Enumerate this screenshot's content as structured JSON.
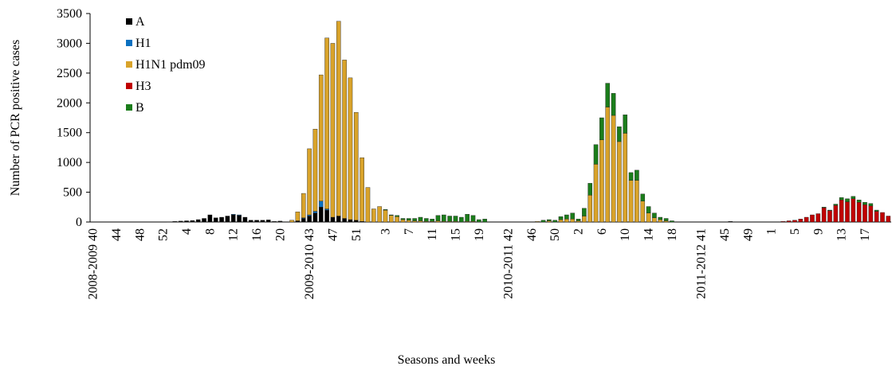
{
  "chart_data": {
    "type": "stacked_bar",
    "x_label": "Seasons and weeks",
    "y_label": "Number of PCR positive cases",
    "ylim": [
      0,
      3500
    ],
    "yticks": [
      0,
      500,
      1000,
      1500,
      2000,
      2500,
      3000,
      3500
    ],
    "legend": "top-left",
    "categories": [
      "2008-2009 40",
      null,
      null,
      null,
      "44",
      null,
      null,
      null,
      "48",
      null,
      null,
      null,
      "52",
      null,
      null,
      null,
      "4",
      null,
      null,
      null,
      "8",
      null,
      null,
      null,
      "12",
      null,
      null,
      null,
      "16",
      null,
      null,
      null,
      "20",
      null,
      null,
      null,
      null,
      "2009-2010 43",
      null,
      null,
      null,
      "47",
      null,
      null,
      null,
      "51",
      null,
      null,
      null,
      null,
      "3",
      null,
      null,
      null,
      "7",
      null,
      null,
      null,
      "11",
      null,
      null,
      null,
      "15",
      null,
      null,
      null,
      "19",
      null,
      null,
      null,
      null,
      "2010-2011 42",
      null,
      null,
      null,
      "46",
      null,
      null,
      null,
      "50",
      null,
      null,
      null,
      "2",
      null,
      null,
      null,
      "6",
      null,
      null,
      null,
      "10",
      null,
      null,
      null,
      "14",
      null,
      null,
      null,
      "18",
      null,
      null,
      null,
      null,
      "2011-2012 41",
      null,
      null,
      null,
      "45",
      null,
      null,
      null,
      "49",
      null,
      null,
      null,
      "1",
      null,
      null,
      null,
      "5",
      null,
      null,
      null,
      "9",
      null,
      null,
      null,
      "13",
      null,
      null,
      null,
      "17",
      null,
      null,
      null,
      null
    ],
    "series": [
      {
        "name": "A",
        "color": "#000000",
        "values": [
          0,
          0,
          0,
          0,
          0,
          0,
          0,
          0,
          0,
          0,
          0,
          0,
          0,
          5,
          10,
          15,
          20,
          25,
          40,
          60,
          120,
          70,
          80,
          100,
          120,
          110,
          80,
          30,
          30,
          30,
          35,
          10,
          15,
          0,
          0,
          20,
          60,
          100,
          150,
          250,
          200,
          80,
          100,
          60,
          40,
          30,
          10,
          0,
          0,
          0,
          0,
          0,
          0,
          0,
          0,
          0,
          0,
          0,
          0,
          0,
          0,
          0,
          0,
          0,
          0,
          0,
          0,
          0,
          0,
          0,
          0,
          0,
          0,
          0,
          0,
          0,
          0,
          0,
          0,
          0,
          0,
          0,
          0,
          0,
          0,
          0,
          0,
          0,
          0,
          0,
          0,
          0,
          0,
          0,
          0,
          0,
          0,
          0,
          0,
          0,
          0,
          0,
          0,
          0,
          0,
          0,
          0,
          0,
          0,
          10,
          0,
          0,
          0,
          0,
          0,
          0,
          0,
          0,
          0,
          0,
          0,
          0,
          0,
          0,
          0,
          0,
          0,
          0,
          0,
          0,
          0,
          0,
          0,
          0,
          0,
          0,
          0
        ]
      },
      {
        "name": "H1",
        "color": "#0a70c0",
        "values": [
          0,
          0,
          0,
          0,
          0,
          0,
          0,
          0,
          0,
          0,
          0,
          0,
          0,
          0,
          0,
          0,
          0,
          0,
          0,
          0,
          0,
          0,
          0,
          0,
          10,
          10,
          0,
          0,
          0,
          0,
          0,
          0,
          0,
          0,
          0,
          0,
          10,
          20,
          30,
          100,
          20,
          0,
          0,
          0,
          0,
          0,
          0,
          0,
          0,
          0,
          0,
          0,
          0,
          0,
          0,
          0,
          0,
          0,
          0,
          0,
          0,
          0,
          0,
          0,
          0,
          0,
          0,
          0,
          0,
          0,
          0,
          0,
          0,
          0,
          0,
          0,
          0,
          0,
          0,
          0,
          0,
          0,
          0,
          0,
          0,
          0,
          0,
          0,
          0,
          0,
          0,
          0,
          0,
          0,
          0,
          0,
          0,
          0,
          0,
          0,
          0,
          0,
          0,
          0,
          0,
          0,
          0,
          0,
          0,
          0,
          0,
          0,
          0,
          0,
          0,
          0,
          0,
          0,
          0,
          0,
          0,
          0,
          0,
          0,
          0,
          0,
          0,
          0,
          0,
          0,
          0,
          0,
          0,
          0,
          0,
          0,
          0
        ]
      },
      {
        "name": "H1N1 pdm09",
        "color": "#d9a32a",
        "values": [
          0,
          0,
          0,
          0,
          0,
          0,
          0,
          0,
          0,
          0,
          0,
          0,
          0,
          0,
          0,
          0,
          0,
          0,
          0,
          0,
          0,
          0,
          0,
          0,
          0,
          0,
          0,
          0,
          0,
          0,
          0,
          0,
          0,
          0,
          30,
          150,
          410,
          1110,
          1380,
          2120,
          2870,
          2920,
          3270,
          2660,
          2380,
          1810,
          1070,
          580,
          220,
          260,
          200,
          110,
          90,
          40,
          30,
          20,
          20,
          10,
          10,
          20,
          10,
          10,
          10,
          0,
          10,
          10,
          0,
          0,
          0,
          0,
          0,
          0,
          0,
          0,
          0,
          0,
          10,
          0,
          20,
          0,
          40,
          50,
          50,
          20,
          100,
          450,
          970,
          1380,
          1930,
          1790,
          1350,
          1490,
          700,
          700,
          350,
          150,
          70,
          40,
          20,
          0,
          0,
          0,
          0,
          0,
          0,
          0,
          0,
          0,
          0,
          0,
          0,
          0,
          0,
          0,
          0,
          0,
          0,
          0,
          0,
          0,
          0,
          0,
          0,
          0,
          0,
          0,
          0,
          0,
          0,
          0,
          0,
          0,
          0,
          0,
          0,
          0,
          0
        ]
      },
      {
        "name": "H3",
        "color": "#c00000",
        "values": [
          0,
          0,
          0,
          0,
          0,
          0,
          0,
          0,
          0,
          0,
          0,
          0,
          0,
          0,
          0,
          0,
          0,
          0,
          0,
          0,
          0,
          0,
          0,
          0,
          0,
          0,
          0,
          0,
          0,
          0,
          0,
          0,
          0,
          0,
          0,
          0,
          0,
          0,
          0,
          0,
          0,
          0,
          0,
          0,
          0,
          0,
          0,
          0,
          0,
          0,
          0,
          0,
          0,
          0,
          0,
          0,
          0,
          0,
          0,
          0,
          0,
          0,
          0,
          0,
          0,
          0,
          0,
          0,
          0,
          0,
          0,
          0,
          0,
          0,
          0,
          0,
          0,
          0,
          0,
          0,
          0,
          0,
          0,
          0,
          0,
          0,
          0,
          0,
          0,
          0,
          0,
          0,
          0,
          0,
          0,
          0,
          0,
          0,
          0,
          0,
          0,
          0,
          0,
          0,
          0,
          0,
          0,
          0,
          0,
          0,
          0,
          0,
          0,
          0,
          0,
          0,
          0,
          0,
          10,
          20,
          30,
          50,
          80,
          120,
          140,
          240,
          190,
          280,
          370,
          340,
          390,
          330,
          290,
          270,
          180,
          160,
          100
        ]
      },
      {
        "name": "B",
        "color": "#1b7d1b",
        "values": [
          0,
          0,
          0,
          0,
          0,
          0,
          0,
          0,
          0,
          0,
          0,
          0,
          0,
          0,
          0,
          0,
          0,
          0,
          0,
          0,
          0,
          0,
          0,
          0,
          0,
          0,
          0,
          0,
          0,
          0,
          0,
          0,
          0,
          0,
          0,
          0,
          0,
          0,
          0,
          0,
          0,
          0,
          0,
          0,
          0,
          0,
          0,
          0,
          0,
          0,
          10,
          10,
          20,
          20,
          30,
          40,
          60,
          50,
          40,
          90,
          110,
          90,
          90,
          80,
          120,
          100,
          40,
          50,
          0,
          0,
          0,
          0,
          0,
          0,
          0,
          0,
          0,
          30,
          20,
          30,
          50,
          70,
          100,
          30,
          130,
          200,
          330,
          370,
          400,
          370,
          250,
          310,
          130,
          170,
          120,
          110,
          80,
          40,
          40,
          20,
          0,
          0,
          0,
          0,
          0,
          0,
          0,
          0,
          0,
          0,
          0,
          0,
          0,
          0,
          0,
          0,
          0,
          0,
          0,
          0,
          0,
          0,
          0,
          0,
          0,
          10,
          10,
          20,
          40,
          50,
          40,
          40,
          40,
          40,
          20,
          0,
          0
        ]
      }
    ]
  }
}
